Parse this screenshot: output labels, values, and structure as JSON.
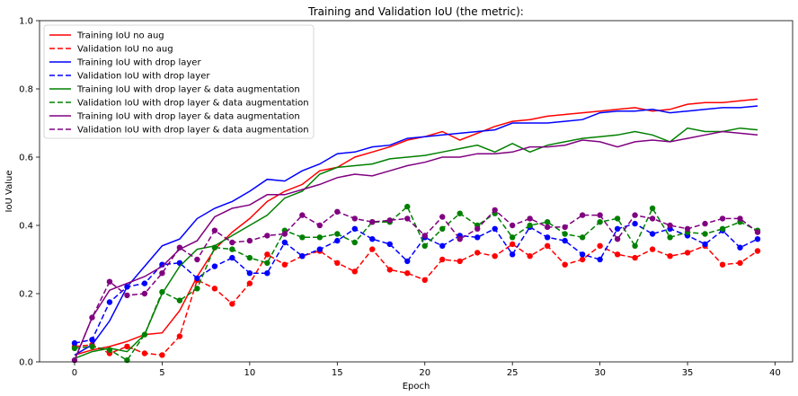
{
  "chart_data": {
    "type": "line",
    "title": "Training and Validation IoU (the metric):",
    "xlabel": "Epoch",
    "ylabel": "IoU Value",
    "xlim": [
      -2,
      41
    ],
    "ylim": [
      0.0,
      1.0
    ],
    "xticks": [
      0,
      5,
      10,
      15,
      20,
      25,
      30,
      35,
      40
    ],
    "yticks": [
      0.0,
      0.2,
      0.4,
      0.6,
      0.8,
      1.0
    ],
    "xtick_labels": [
      "0",
      "5",
      "10",
      "15",
      "20",
      "25",
      "30",
      "35",
      "40"
    ],
    "ytick_labels": [
      "0.0",
      "0.2",
      "0.4",
      "0.6",
      "0.8",
      "1.0"
    ],
    "grid": false,
    "legend_position": "upper-left",
    "x": [
      0,
      1,
      2,
      3,
      4,
      5,
      6,
      7,
      8,
      9,
      10,
      11,
      12,
      13,
      14,
      15,
      16,
      17,
      18,
      19,
      20,
      21,
      22,
      23,
      24,
      25,
      26,
      27,
      28,
      29,
      30,
      31,
      32,
      33,
      34,
      35,
      36,
      37,
      38,
      39
    ],
    "series": [
      {
        "name": "Training IoU no aug",
        "color": "#ff0000",
        "style": "solid",
        "markers": false,
        "values": [
          0.02,
          0.035,
          0.045,
          0.06,
          0.08,
          0.085,
          0.15,
          0.25,
          0.33,
          0.38,
          0.42,
          0.47,
          0.5,
          0.52,
          0.56,
          0.57,
          0.6,
          0.615,
          0.63,
          0.65,
          0.66,
          0.675,
          0.65,
          0.67,
          0.69,
          0.705,
          0.71,
          0.72,
          0.725,
          0.73,
          0.735,
          0.74,
          0.745,
          0.735,
          0.74,
          0.755,
          0.76,
          0.76,
          0.765,
          0.77
        ]
      },
      {
        "name": "Validation IoU no aug",
        "color": "#ff0000",
        "style": "dashed",
        "markers": true,
        "values": [
          0.045,
          0.05,
          0.025,
          0.045,
          0.025,
          0.02,
          0.075,
          0.24,
          0.215,
          0.17,
          0.23,
          0.315,
          0.285,
          0.31,
          0.325,
          0.29,
          0.265,
          0.33,
          0.27,
          0.26,
          0.24,
          0.3,
          0.295,
          0.32,
          0.31,
          0.345,
          0.31,
          0.34,
          0.285,
          0.3,
          0.34,
          0.315,
          0.305,
          0.33,
          0.31,
          0.32,
          0.34,
          0.285,
          0.29,
          0.325
        ]
      },
      {
        "name": "Training IoU with drop layer",
        "color": "#0000ff",
        "style": "solid",
        "markers": false,
        "values": [
          0.02,
          0.05,
          0.12,
          0.22,
          0.28,
          0.34,
          0.36,
          0.42,
          0.45,
          0.47,
          0.5,
          0.535,
          0.53,
          0.56,
          0.58,
          0.61,
          0.615,
          0.63,
          0.635,
          0.655,
          0.66,
          0.665,
          0.67,
          0.675,
          0.68,
          0.7,
          0.7,
          0.7,
          0.705,
          0.71,
          0.73,
          0.735,
          0.735,
          0.74,
          0.73,
          0.735,
          0.74,
          0.745,
          0.745,
          0.75
        ]
      },
      {
        "name": "Validation IoU with drop layer",
        "color": "#0000ff",
        "style": "dashed",
        "markers": true,
        "values": [
          0.055,
          0.065,
          0.175,
          0.22,
          0.23,
          0.285,
          0.29,
          0.245,
          0.28,
          0.305,
          0.26,
          0.26,
          0.35,
          0.31,
          0.33,
          0.355,
          0.39,
          0.36,
          0.345,
          0.295,
          0.365,
          0.34,
          0.37,
          0.365,
          0.39,
          0.315,
          0.395,
          0.365,
          0.355,
          0.315,
          0.3,
          0.39,
          0.405,
          0.375,
          0.39,
          0.37,
          0.345,
          0.385,
          0.335,
          0.36
        ]
      },
      {
        "name": "Training IoU with drop layer & data augmentation",
        "color": "#008000",
        "style": "solid",
        "markers": false,
        "values": [
          0.01,
          0.03,
          0.04,
          0.03,
          0.08,
          0.2,
          0.28,
          0.33,
          0.34,
          0.37,
          0.4,
          0.43,
          0.48,
          0.5,
          0.55,
          0.57,
          0.575,
          0.58,
          0.595,
          0.6,
          0.605,
          0.615,
          0.625,
          0.635,
          0.615,
          0.64,
          0.615,
          0.635,
          0.645,
          0.655,
          0.66,
          0.665,
          0.675,
          0.665,
          0.645,
          0.685,
          0.675,
          0.675,
          0.685,
          0.68
        ]
      },
      {
        "name": "Validation IoU with drop layer & data augmentation",
        "color": "#008000",
        "style": "dashed",
        "markers": true,
        "values": [
          0.04,
          0.045,
          0.035,
          0.005,
          0.08,
          0.205,
          0.18,
          0.215,
          0.335,
          0.33,
          0.305,
          0.29,
          0.385,
          0.365,
          0.365,
          0.375,
          0.35,
          0.41,
          0.41,
          0.455,
          0.34,
          0.39,
          0.435,
          0.4,
          0.435,
          0.365,
          0.4,
          0.41,
          0.375,
          0.365,
          0.41,
          0.42,
          0.34,
          0.45,
          0.365,
          0.38,
          0.375,
          0.39,
          0.41,
          0.385
        ]
      },
      {
        "name": "Training IoU with drop layer & data augmentation",
        "color": "#800080",
        "style": "solid",
        "markers": false,
        "values": [
          0.005,
          0.13,
          0.21,
          0.23,
          0.25,
          0.28,
          0.33,
          0.355,
          0.425,
          0.45,
          0.46,
          0.49,
          0.49,
          0.505,
          0.52,
          0.54,
          0.55,
          0.545,
          0.56,
          0.575,
          0.585,
          0.6,
          0.6,
          0.61,
          0.61,
          0.615,
          0.63,
          0.63,
          0.635,
          0.65,
          0.645,
          0.63,
          0.645,
          0.65,
          0.645,
          0.655,
          0.665,
          0.675,
          0.67,
          0.665
        ]
      },
      {
        "name": "Validation IoU with drop layer & data augmentation",
        "color": "#800080",
        "style": "dashed",
        "markers": true,
        "values": [
          0.005,
          0.13,
          0.235,
          0.195,
          0.2,
          0.26,
          0.335,
          0.3,
          0.385,
          0.35,
          0.355,
          0.37,
          0.375,
          0.43,
          0.4,
          0.44,
          0.42,
          0.41,
          0.415,
          0.42,
          0.37,
          0.425,
          0.36,
          0.39,
          0.445,
          0.4,
          0.42,
          0.395,
          0.395,
          0.43,
          0.43,
          0.36,
          0.43,
          0.42,
          0.4,
          0.39,
          0.405,
          0.42,
          0.42,
          0.38
        ]
      }
    ]
  }
}
